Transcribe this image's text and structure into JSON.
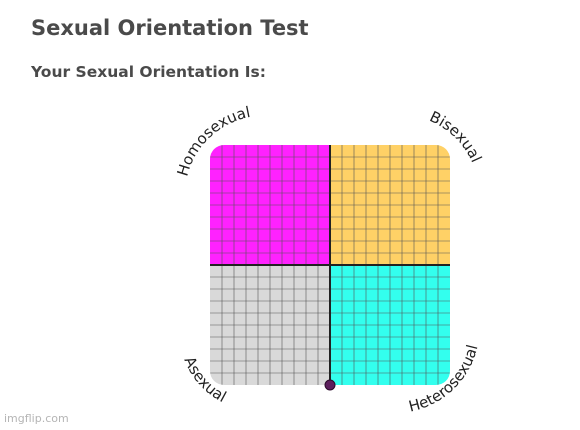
{
  "header": {
    "title": "Sexual Orientation Test",
    "result_heading": "Your Sexual Orientation Is:"
  },
  "compass": {
    "labels": {
      "top_left": "Homosexual",
      "top_right": "Bisexual",
      "bottom_left": "Asexual",
      "bottom_right": "Heterosexual"
    },
    "colors": {
      "top_left": "#ff22ff",
      "top_right": "#ffd166",
      "bottom_left": "#d9d9d9",
      "bottom_right": "#33ffee",
      "marker": "#5b1e5b"
    },
    "result_point": {
      "x": 0.0,
      "y": -1.0
    }
  },
  "watermark": "imgflip.com"
}
